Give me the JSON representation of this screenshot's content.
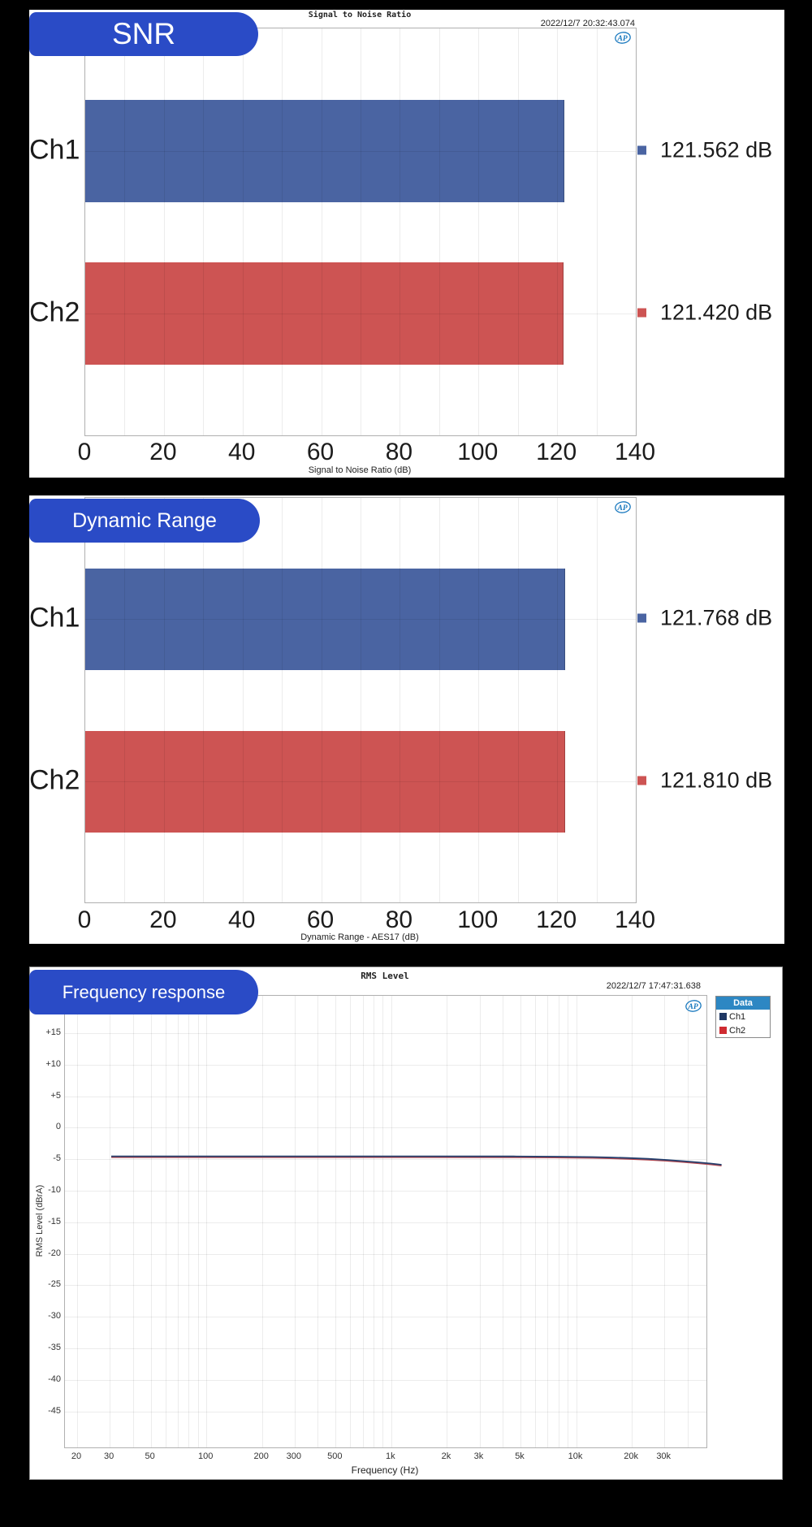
{
  "vendor_logo_text": "AP",
  "colors": {
    "background": "#000000",
    "panel_bg": "#ffffff",
    "badge_blue": "#2a4bc6",
    "ch1_bar": "#4a64a2",
    "ch2_bar": "#cd5453",
    "ch1_line": "#24406e",
    "ch2_line": "#b5484f",
    "legend_header_bg": "#2d87c3",
    "legend_ch1_swatch": "#1f3864",
    "legend_ch2_swatch": "#cf2b31"
  },
  "snr": {
    "badge": "SNR",
    "title": "Signal to Noise Ratio",
    "timestamp": "2022/12/7 20:32:43.074",
    "axis_label": "Signal to Noise Ratio (dB)",
    "x_ticks": [
      "0",
      "20",
      "40",
      "60",
      "80",
      "100",
      "120",
      "140"
    ],
    "rows": [
      {
        "channel": "Ch1",
        "value_label": "121.562 dB"
      },
      {
        "channel": "Ch2",
        "value_label": "121.420 dB"
      }
    ]
  },
  "dynamic_range": {
    "badge": "Dynamic Range",
    "axis_label": "Dynamic Range - AES17 (dB)",
    "x_ticks": [
      "0",
      "20",
      "40",
      "60",
      "80",
      "100",
      "120",
      "140"
    ],
    "rows": [
      {
        "channel": "Ch1",
        "value_label": "121.768 dB"
      },
      {
        "channel": "Ch2",
        "value_label": "121.810 dB"
      }
    ]
  },
  "frequency_response": {
    "badge": "Frequency response",
    "title": "RMS Level",
    "timestamp": "2022/12/7 17:47:31.638",
    "legend": {
      "header": "Data",
      "items": [
        {
          "label": "Ch1"
        },
        {
          "label": "Ch2"
        }
      ]
    },
    "y_axis": {
      "label": "RMS Level (dBrA)",
      "ticks": [
        "+15",
        "+10",
        "+5",
        "0",
        "-5",
        "-10",
        "-15",
        "-20",
        "-25",
        "-30",
        "-35",
        "-40",
        "-45"
      ]
    },
    "x_axis": {
      "label": "Frequency (Hz)",
      "ticks": [
        "20",
        "30",
        "50",
        "100",
        "200",
        "300",
        "500",
        "1k",
        "2k",
        "3k",
        "5k",
        "10k",
        "20k",
        "30k"
      ]
    }
  },
  "chart_data": [
    {
      "type": "bar",
      "orientation": "horizontal",
      "title": "Signal to Noise Ratio",
      "timestamp": "2022/12/7 20:32:43.074",
      "categories": [
        "Ch1",
        "Ch2"
      ],
      "values": [
        121.562,
        121.42
      ],
      "data_labels": [
        "121.562 dB",
        "121.420 dB"
      ],
      "unit": "dB",
      "xlabel": "Signal to Noise Ratio (dB)",
      "xlim": [
        0,
        140
      ],
      "x_tick_step": 20,
      "grid_step": 10,
      "bar_colors": [
        "#4a64a2",
        "#cd5453"
      ]
    },
    {
      "type": "bar",
      "orientation": "horizontal",
      "title": "Dynamic Range",
      "categories": [
        "Ch1",
        "Ch2"
      ],
      "values": [
        121.768,
        121.81
      ],
      "data_labels": [
        "121.768 dB",
        "121.810 dB"
      ],
      "unit": "dB",
      "xlabel": "Dynamic Range - AES17 (dB)",
      "xlim": [
        0,
        140
      ],
      "x_tick_step": 20,
      "grid_step": 10,
      "bar_colors": [
        "#4a64a2",
        "#cd5453"
      ]
    },
    {
      "type": "line",
      "title": "RMS Level",
      "timestamp": "2022/12/7 17:47:31.638",
      "xlabel": "Frequency (Hz)",
      "ylabel": "RMS Level (dBrA)",
      "x_scale": "log",
      "xlim": [
        17,
        50000
      ],
      "ylim": [
        -51,
        21
      ],
      "y_ticks": [
        15,
        10,
        5,
        0,
        -5,
        -10,
        -15,
        -20,
        -25,
        -30,
        -35,
        -40,
        -45
      ],
      "x_ticks": [
        20,
        30,
        50,
        100,
        200,
        300,
        500,
        1000,
        2000,
        3000,
        5000,
        10000,
        20000,
        30000
      ],
      "grid": true,
      "legend_position": "top-right",
      "series": [
        {
          "name": "Ch1",
          "color": "#24406e",
          "x": [
            20,
            50,
            100,
            300,
            1000,
            3000,
            5000,
            8000,
            10000,
            12500,
            16000,
            20000,
            25000,
            30000,
            35000,
            40000
          ],
          "y": [
            -0.15,
            -0.15,
            -0.15,
            -0.15,
            -0.15,
            -0.17,
            -0.2,
            -0.27,
            -0.33,
            -0.42,
            -0.55,
            -0.72,
            -0.93,
            -1.12,
            -1.3,
            -1.5
          ]
        },
        {
          "name": "Ch2",
          "color": "#b5484f",
          "x": [
            20,
            50,
            100,
            300,
            1000,
            3000,
            5000,
            8000,
            10000,
            12500,
            16000,
            20000,
            25000,
            30000,
            35000,
            40000
          ],
          "y": [
            -0.15,
            -0.15,
            -0.15,
            -0.15,
            -0.15,
            -0.17,
            -0.2,
            -0.27,
            -0.33,
            -0.42,
            -0.55,
            -0.72,
            -0.93,
            -1.12,
            -1.3,
            -1.5
          ]
        }
      ]
    }
  ]
}
